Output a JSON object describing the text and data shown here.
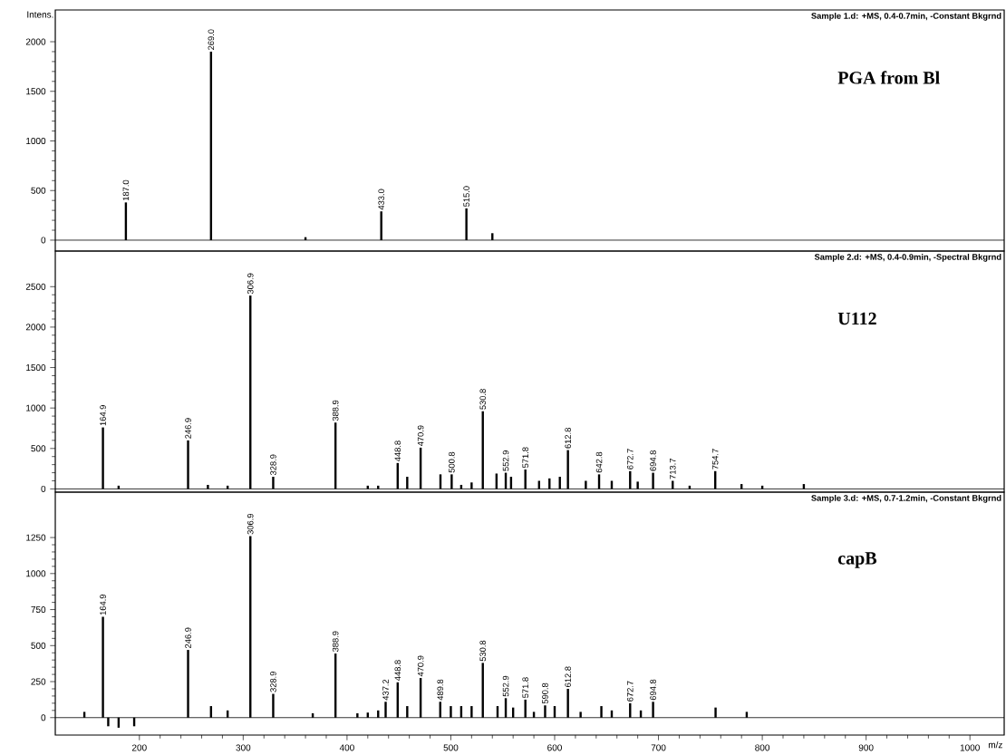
{
  "chart_data": [
    {
      "type": "bar",
      "title": "PGA from Bl",
      "subtitle": "Sample 1.d: +MS, 0.4-0.7min, -Constant Bkgrnd",
      "ylabel": "Intens.",
      "color": "#000000",
      "tick_labels": "y",
      "x": [
        187.0,
        269.0,
        360,
        433.0,
        515.0,
        540
      ],
      "values": [
        380,
        1900,
        30,
        290,
        320,
        70
      ],
      "xlim": [
        119,
        1033
      ],
      "ylim": [
        -110,
        2320
      ],
      "yticks": [
        0,
        500,
        1000,
        1500,
        2000
      ],
      "annotations": [
        {
          "text": "187.0",
          "x": 187.0,
          "y": 380
        },
        {
          "text": "269.0",
          "x": 269.0,
          "y": 1900
        },
        {
          "text": "433.0",
          "x": 433.0,
          "y": 290
        },
        {
          "text": "515.0",
          "x": 515.0,
          "y": 320
        }
      ]
    },
    {
      "type": "bar",
      "title": "U112",
      "subtitle": "Sample 2.d: +MS, 0.4-0.9min, -Spectral Bkgrnd",
      "color": "#000000",
      "tick_labels": "y",
      "x": [
        164.9,
        180,
        246.9,
        266,
        285,
        306.9,
        328.9,
        388.9,
        420,
        430,
        448.8,
        458,
        470.9,
        490,
        500.8,
        510,
        520,
        530.8,
        544,
        552.9,
        558,
        571.8,
        585,
        595,
        605,
        612.8,
        630,
        642.8,
        655,
        672.7,
        680,
        694.8,
        713.7,
        730,
        754.7,
        780,
        800,
        840
      ],
      "values": [
        760,
        40,
        600,
        50,
        40,
        2390,
        150,
        820,
        40,
        40,
        320,
        150,
        510,
        180,
        180,
        50,
        80,
        960,
        190,
        200,
        150,
        240,
        100,
        130,
        150,
        480,
        100,
        180,
        100,
        220,
        90,
        200,
        100,
        40,
        220,
        60,
        40,
        60
      ],
      "xlim": [
        119,
        1033
      ],
      "ylim": [
        -40,
        2940
      ],
      "yticks": [
        0,
        500,
        1000,
        1500,
        2000,
        2500
      ],
      "annotations": [
        {
          "text": "164.9",
          "x": 164.9,
          "y": 760
        },
        {
          "text": "246.9",
          "x": 246.9,
          "y": 600
        },
        {
          "text": "306.9",
          "x": 306.9,
          "y": 2390
        },
        {
          "text": "328.9",
          "x": 328.9,
          "y": 150
        },
        {
          "text": "388.9",
          "x": 388.9,
          "y": 820
        },
        {
          "text": "448.8",
          "x": 448.8,
          "y": 320
        },
        {
          "text": "470.9",
          "x": 470.9,
          "y": 510
        },
        {
          "text": "500.8",
          "x": 500.8,
          "y": 180
        },
        {
          "text": "530.8",
          "x": 530.8,
          "y": 960
        },
        {
          "text": "552.9",
          "x": 552.9,
          "y": 200
        },
        {
          "text": "571.8",
          "x": 571.8,
          "y": 240
        },
        {
          "text": "612.8",
          "x": 612.8,
          "y": 480
        },
        {
          "text": "642.8",
          "x": 642.8,
          "y": 180
        },
        {
          "text": "672.7",
          "x": 672.7,
          "y": 220
        },
        {
          "text": "694.8",
          "x": 694.8,
          "y": 200
        },
        {
          "text": "713.7",
          "x": 713.7,
          "y": 100
        },
        {
          "text": "754.7",
          "x": 754.7,
          "y": 220
        }
      ]
    },
    {
      "type": "bar",
      "title": "capB",
      "subtitle": "Sample 3.d: +MS, 0.7-1.2min, -Constant Bkgrnd",
      "xlabel": "m/z",
      "color": "#000000",
      "x": [
        147,
        164.9,
        170,
        180,
        195,
        246.9,
        269,
        285,
        306.9,
        328.9,
        367,
        388.9,
        410,
        420,
        430,
        437.2,
        448.8,
        458,
        470.9,
        489.8,
        500,
        510,
        520,
        530.8,
        545,
        552.9,
        560,
        571.8,
        580,
        590.8,
        600,
        612.8,
        625,
        645,
        655,
        672.7,
        683,
        694.8,
        755,
        785
      ],
      "values": [
        40,
        700,
        -60,
        -70,
        -60,
        470,
        80,
        50,
        1260,
        165,
        30,
        445,
        30,
        35,
        50,
        110,
        245,
        80,
        275,
        110,
        80,
        80,
        80,
        380,
        80,
        135,
        70,
        125,
        40,
        85,
        80,
        200,
        40,
        80,
        50,
        100,
        50,
        110,
        70,
        40
      ],
      "xlim": [
        119,
        1033
      ],
      "ylim": [
        -121,
        1565
      ],
      "yticks": [
        0,
        250,
        500,
        750,
        1000,
        1250
      ],
      "xticks": [
        200,
        300,
        400,
        500,
        600,
        700,
        800,
        900,
        1000
      ],
      "annotations": [
        {
          "text": "164.9",
          "x": 164.9,
          "y": 700
        },
        {
          "text": "246.9",
          "x": 246.9,
          "y": 470
        },
        {
          "text": "306.9",
          "x": 306.9,
          "y": 1260
        },
        {
          "text": "328.9",
          "x": 328.9,
          "y": 165
        },
        {
          "text": "388.9",
          "x": 388.9,
          "y": 445
        },
        {
          "text": "437.2",
          "x": 437.2,
          "y": 110
        },
        {
          "text": "448.8",
          "x": 448.8,
          "y": 245
        },
        {
          "text": "470.9",
          "x": 470.9,
          "y": 275
        },
        {
          "text": "489.8",
          "x": 489.8,
          "y": 110
        },
        {
          "text": "530.8",
          "x": 530.8,
          "y": 380
        },
        {
          "text": "552.9",
          "x": 552.9,
          "y": 135
        },
        {
          "text": "571.8",
          "x": 571.8,
          "y": 125
        },
        {
          "text": "590.8",
          "x": 590.8,
          "y": 85
        },
        {
          "text": "612.8",
          "x": 612.8,
          "y": 200
        },
        {
          "text": "672.7",
          "x": 672.7,
          "y": 100
        },
        {
          "text": "694.8",
          "x": 694.8,
          "y": 110
        }
      ]
    }
  ]
}
